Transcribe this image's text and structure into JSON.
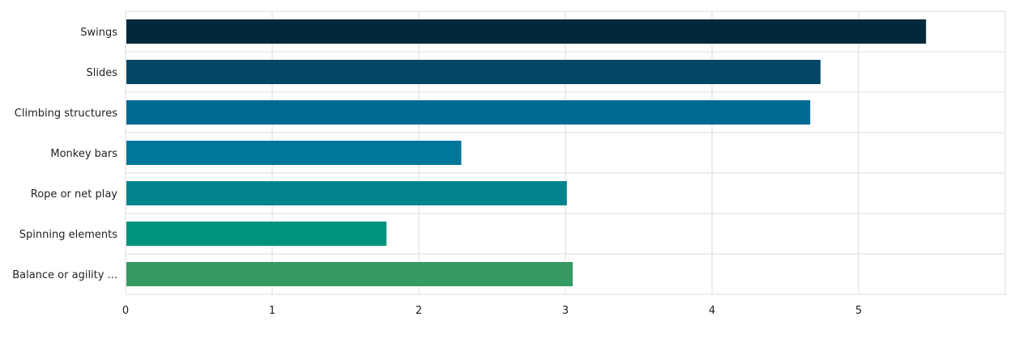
{
  "chart_data": {
    "type": "bar",
    "orientation": "horizontal",
    "categories": [
      "Swings",
      "Slides",
      "Climbing structures",
      "Monkey bars",
      "Rope or net play",
      "Spinning elements",
      "Balance or agility ..."
    ],
    "values": [
      5.46,
      4.74,
      4.67,
      2.29,
      3.01,
      1.78,
      3.05
    ],
    "colors": [
      "#03283b",
      "#034766",
      "#006994",
      "#00769a",
      "#02848e",
      "#00937c",
      "#369b62"
    ],
    "xlim": [
      0,
      6
    ],
    "xticks": [
      0,
      1,
      2,
      3,
      4,
      5
    ],
    "grid": true,
    "legend": "none"
  }
}
